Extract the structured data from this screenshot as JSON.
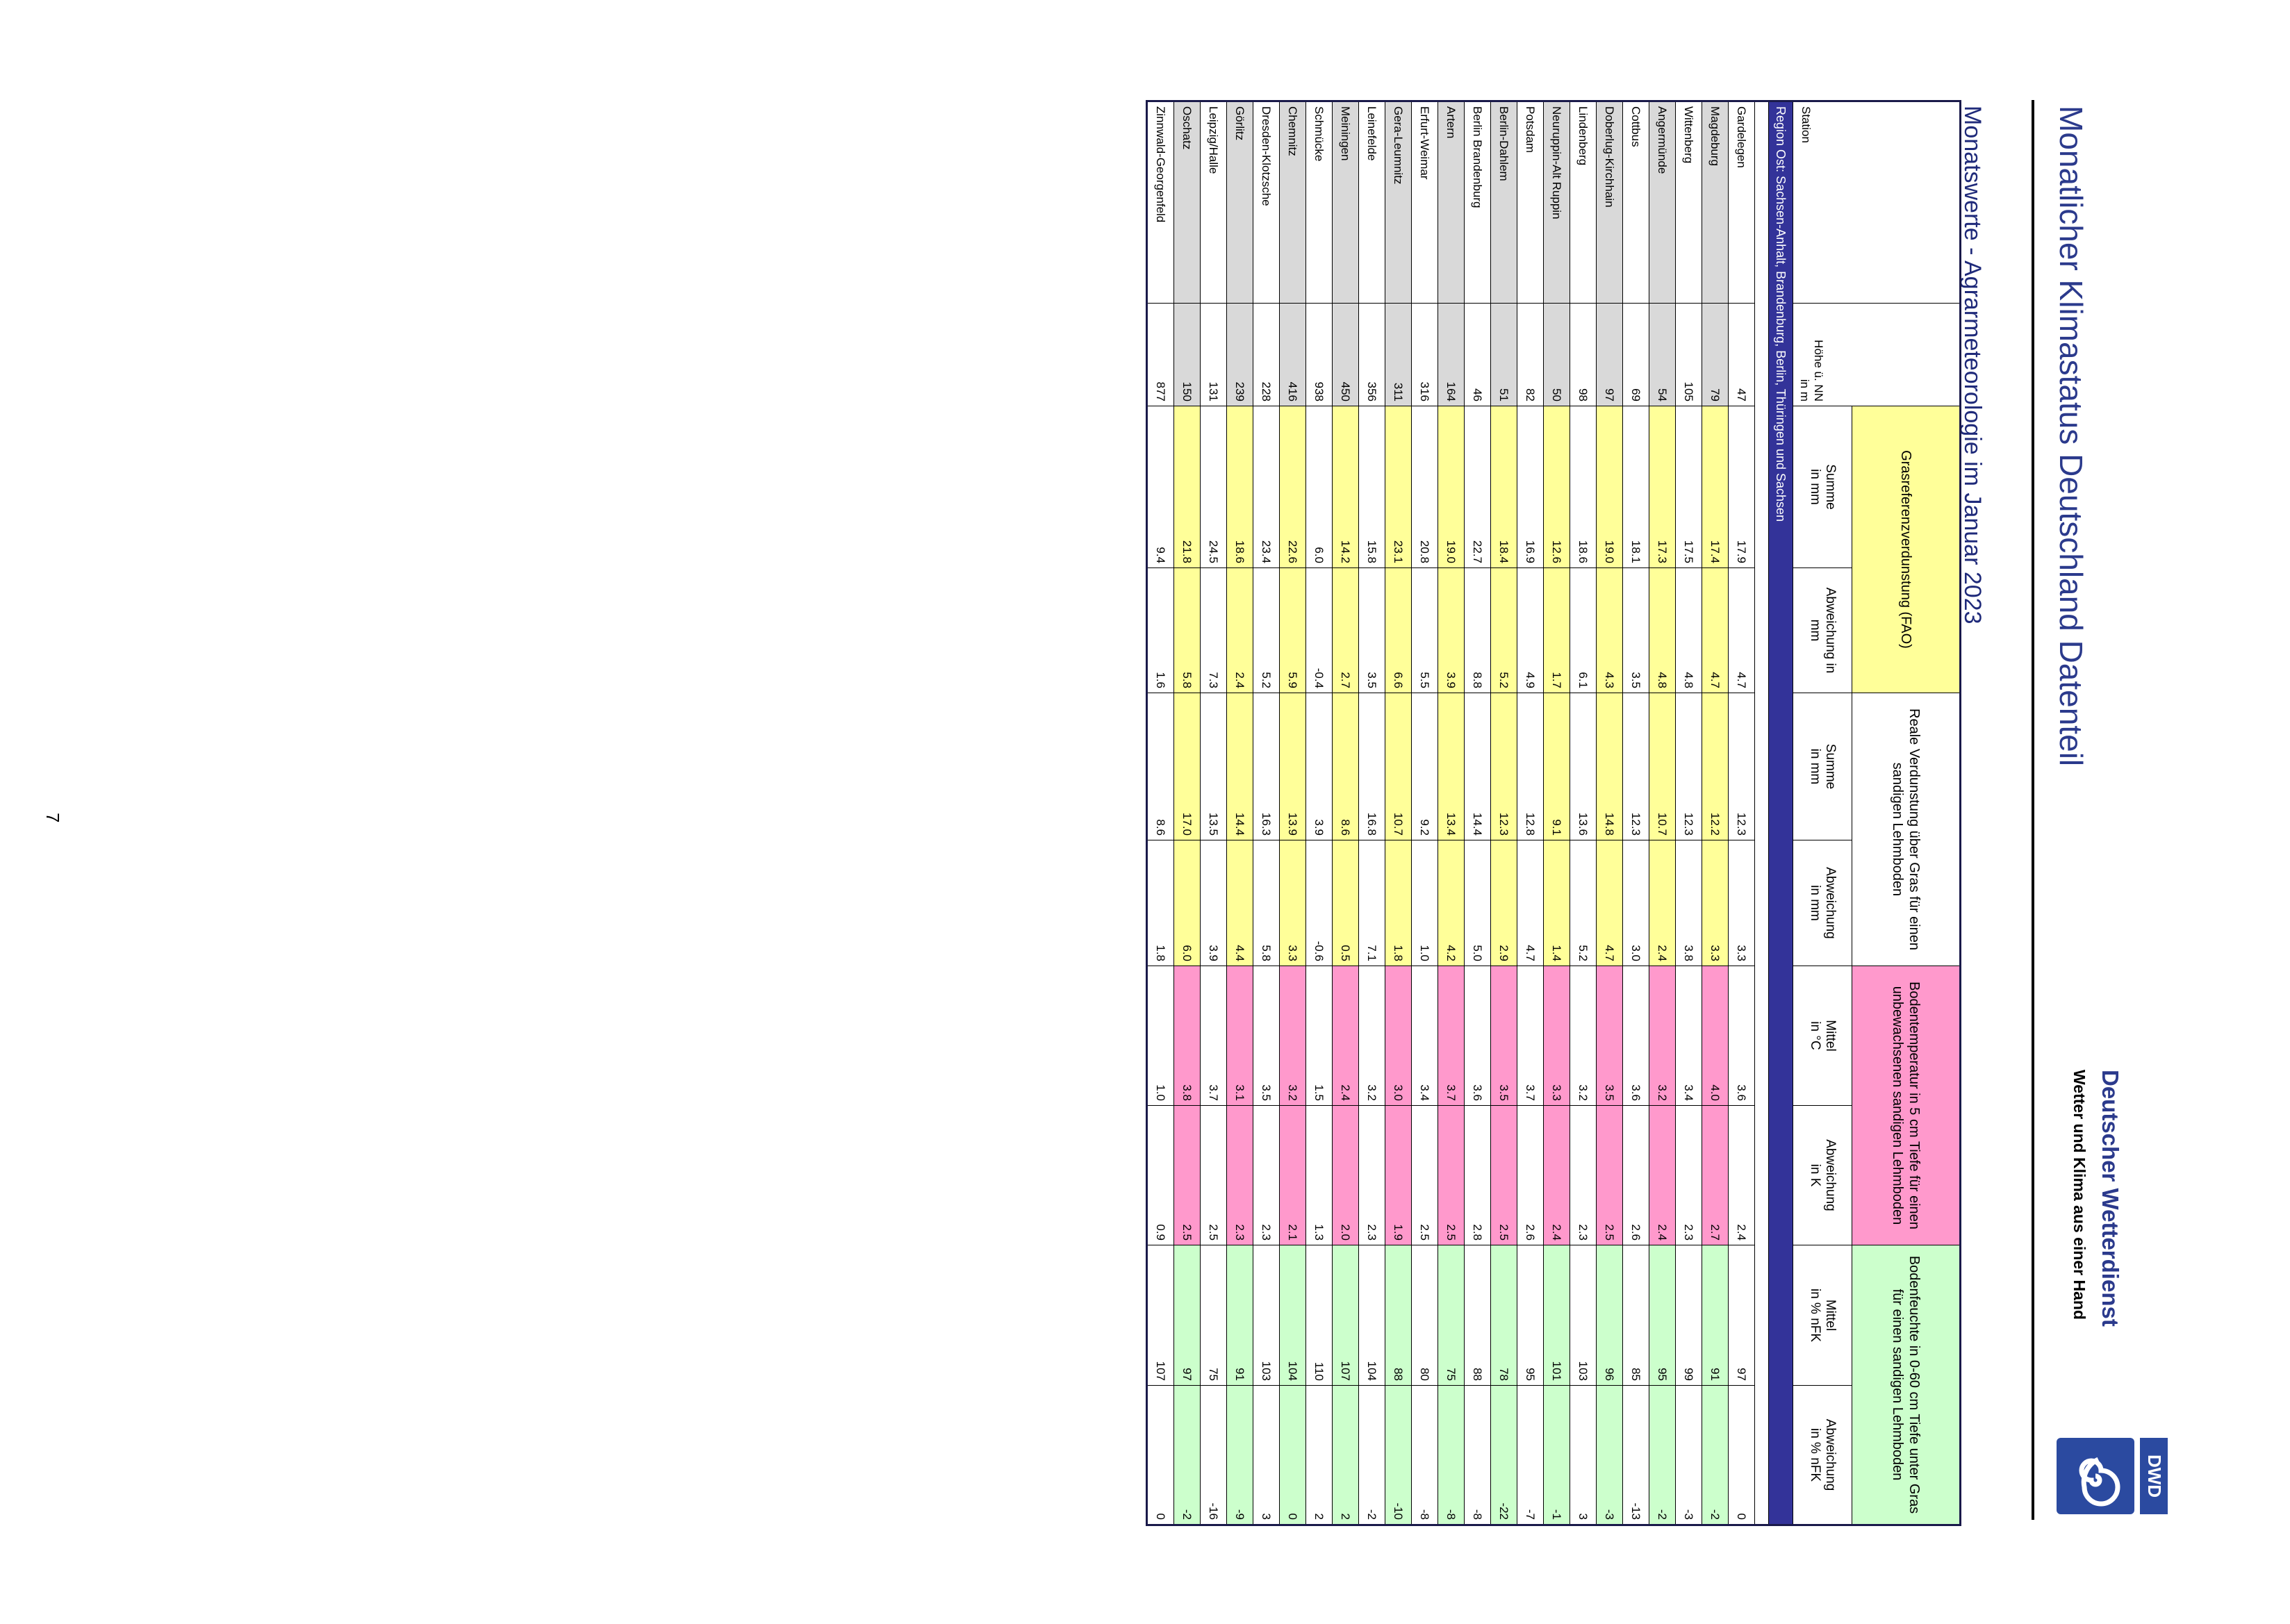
{
  "header": {
    "title": "Monatlicher Klimastatus Deutschland Datenteil",
    "org": "Deutscher Wetterdienst",
    "slogan": "Wetter und Klima aus einer Hand",
    "logo_text": "DWD"
  },
  "subtitle": "Monatswerte - Agrarmeteorologie im Januar 2023",
  "table": {
    "station_header": "Station",
    "height_header": [
      "Höhe ü. NN",
      "in m"
    ],
    "groups": [
      "Grasreferenzverdunstung (FAO)",
      "Reale Verdunstung über Gras für einen sandigen Lehmboden",
      "Bodentemperatur in 5 cm Tiefe für einen unbewachsenen sandigen Lehmboden",
      "Bodenfeuchte in 0-60 cm Tiefe unter Gras für einen sandigen Lehmboden"
    ],
    "subheaders": [
      [
        "Summe",
        "in mm"
      ],
      [
        "Abweichung in",
        "mm"
      ],
      [
        "Summe",
        "in mm"
      ],
      [
        "Abweichung",
        "in mm"
      ],
      [
        "Mittel",
        "in °C"
      ],
      [
        "Abweichung",
        "in K"
      ],
      [
        "Mittel",
        "in % nFK"
      ],
      [
        "Abweichung",
        "in % nFK"
      ]
    ],
    "region": "Region Ost: Sachsen-Anhalt, Brandenburg, Berlin, Thüringen und Sachsen",
    "rows": [
      [
        "Gardelegen",
        "47",
        "17.9",
        "4.7",
        "12.3",
        "3.3",
        "3.6",
        "2.4",
        "97",
        "0"
      ],
      [
        "Magdeburg",
        "79",
        "17.4",
        "4.7",
        "12.2",
        "3.3",
        "4.0",
        "2.7",
        "91",
        "-2"
      ],
      [
        "Wittenberg",
        "105",
        "17.5",
        "4.8",
        "12.3",
        "3.8",
        "3.4",
        "2.3",
        "99",
        "-3"
      ],
      [
        "Angermünde",
        "54",
        "17.3",
        "4.8",
        "10.7",
        "2.4",
        "3.2",
        "2.4",
        "95",
        "-2"
      ],
      [
        "Cottbus",
        "69",
        "18.1",
        "3.5",
        "12.3",
        "3.0",
        "3.6",
        "2.6",
        "85",
        "-13"
      ],
      [
        "Doberlug-Kirchhain",
        "97",
        "19.0",
        "4.3",
        "14.8",
        "4.7",
        "3.5",
        "2.5",
        "96",
        "-3"
      ],
      [
        "Lindenberg",
        "98",
        "18.6",
        "6.1",
        "13.6",
        "5.2",
        "3.2",
        "2.3",
        "103",
        "3"
      ],
      [
        "Neuruppin-Alt Ruppin",
        "50",
        "12.6",
        "1.7",
        "9.1",
        "1.4",
        "3.3",
        "2.4",
        "101",
        "-1"
      ],
      [
        "Potsdam",
        "82",
        "16.9",
        "4.9",
        "12.8",
        "4.7",
        "3.7",
        "2.6",
        "95",
        "-7"
      ],
      [
        "Berlin-Dahlem",
        "51",
        "18.4",
        "5.2",
        "12.3",
        "2.9",
        "3.5",
        "2.5",
        "78",
        "-22"
      ],
      [
        "Berlin Brandenburg",
        "46",
        "22.7",
        "8.8",
        "14.4",
        "5.0",
        "3.6",
        "2.8",
        "88",
        "-8"
      ],
      [
        "Artern",
        "164",
        "19.0",
        "3.9",
        "13.4",
        "4.2",
        "3.7",
        "2.5",
        "75",
        "-8"
      ],
      [
        "Erfurt-Weimar",
        "316",
        "20.8",
        "5.5",
        "9.2",
        "1.0",
        "3.4",
        "2.5",
        "80",
        "-8"
      ],
      [
        "Gera-Leumnitz",
        "311",
        "23.1",
        "6.6",
        "10.7",
        "1.8",
        "3.0",
        "1.9",
        "88",
        "-10"
      ],
      [
        "Leinefelde",
        "356",
        "15.8",
        "3.5",
        "16.8",
        "7.1",
        "3.2",
        "2.3",
        "104",
        "-2"
      ],
      [
        "Meiningen",
        "450",
        "14.2",
        "2.7",
        "8.6",
        "0.5",
        "2.4",
        "2.0",
        "107",
        "2"
      ],
      [
        "Schmücke",
        "938",
        "6.0",
        "-0.4",
        "3.9",
        "-0.6",
        "1.5",
        "1.3",
        "110",
        "2"
      ],
      [
        "Chemnitz",
        "416",
        "22.6",
        "5.9",
        "13.9",
        "3.3",
        "3.2",
        "2.1",
        "104",
        "0"
      ],
      [
        "Dresden-Klotzsche",
        "228",
        "23.4",
        "5.2",
        "16.3",
        "5.8",
        "3.5",
        "2.3",
        "103",
        "3"
      ],
      [
        "Görlitz",
        "239",
        "18.6",
        "2.4",
        "14.4",
        "4.4",
        "3.1",
        "2.3",
        "91",
        "-9"
      ],
      [
        "Leipzig/Halle",
        "131",
        "24.5",
        "7.3",
        "13.5",
        "3.9",
        "3.7",
        "2.5",
        "75",
        "-16"
      ],
      [
        "Oschatz",
        "150",
        "21.8",
        "5.8",
        "17.0",
        "6.0",
        "3.8",
        "2.5",
        "97",
        "-2"
      ],
      [
        "Zinnwald-Georgenfeld",
        "877",
        "9.4",
        "1.6",
        "8.6",
        "1.8",
        "1.0",
        "0.9",
        "107",
        "0"
      ]
    ]
  },
  "page_number": "7"
}
